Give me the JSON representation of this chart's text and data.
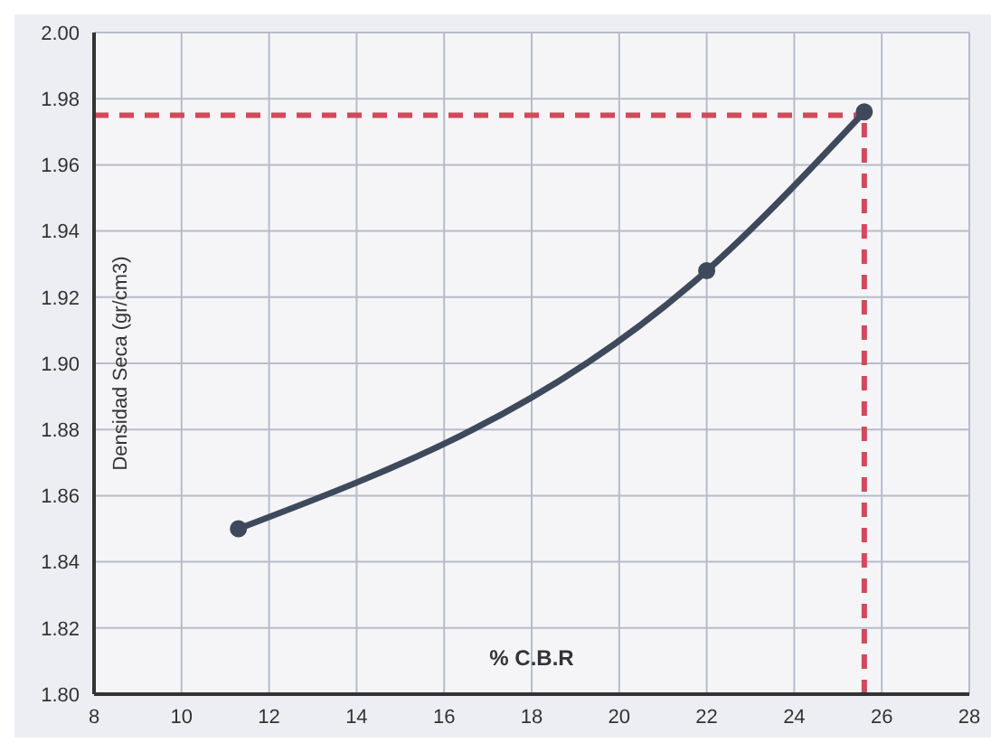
{
  "chart_data": {
    "type": "line",
    "xlabel": "% C.B.R",
    "ylabel": "Densidad Seca (gr/cm3)",
    "x": [
      11.3,
      22,
      25.6
    ],
    "series": [
      {
        "color": "#3e4a5c",
        "values": [
          1.85,
          1.928,
          1.976
        ]
      }
    ],
    "xlim": [
      8,
      28
    ],
    "xticks": [
      8,
      10,
      12,
      14,
      16,
      18,
      20,
      22,
      24,
      26,
      28
    ],
    "ylim": [
      1.8,
      2.0
    ],
    "yticks": [
      {
        "value": 1.8,
        "label": "1.80"
      },
      {
        "value": 1.82,
        "label": "1.82"
      },
      {
        "value": 1.84,
        "label": "1.84"
      },
      {
        "value": 1.86,
        "label": "1.86"
      },
      {
        "value": 1.88,
        "label": "1.88"
      },
      {
        "value": 1.9,
        "label": "1.90"
      },
      {
        "value": 1.92,
        "label": "1.92"
      },
      {
        "value": 1.94,
        "label": "1.94"
      },
      {
        "value": 1.96,
        "label": "1.96"
      },
      {
        "value": 1.98,
        "label": "1.98"
      },
      {
        "value": 2.0,
        "label": "2.00"
      }
    ],
    "ref_lines": [
      {
        "axis": "y",
        "value": 1.975,
        "color": "#d04a5a",
        "line_style": "dashed"
      },
      {
        "axis": "x",
        "value": 25.6,
        "color": "#d04a5a",
        "line_style": "dashed"
      }
    ],
    "grid": true,
    "marker": "circle",
    "line_style": "solid"
  }
}
